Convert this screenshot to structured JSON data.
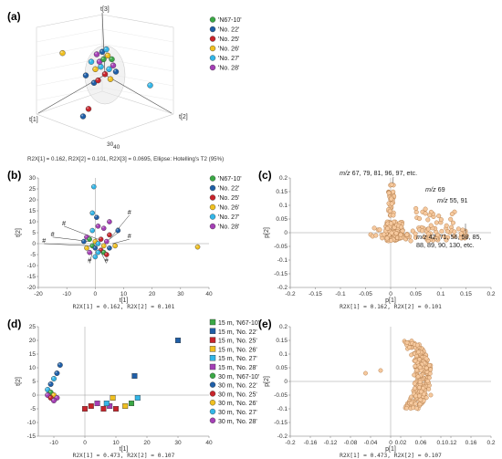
{
  "panels": {
    "a": "(a)",
    "b": "(b)",
    "c": "(c)",
    "d": "(d)",
    "e": "(e)"
  },
  "colors": {
    "N67_10": "#3aa845",
    "No22": "#1f5fa8",
    "No25": "#c8242b",
    "No26": "#f0c020",
    "No27": "#33b6e8",
    "No28": "#a53fb6",
    "loading_fill": "#f6c99e",
    "loading_stroke": "#b07a4a"
  },
  "chart_data": [
    {
      "panel": "a",
      "type": "scatter",
      "axes": [
        "t[1]",
        "t[2]",
        "t[3]"
      ],
      "ticks_bottom": [
        "30",
        "40"
      ],
      "legend": [
        "'N67-10'",
        "'No. 22'",
        "'No. 25'",
        "'No. 26'",
        "'No. 27'",
        "'No. 28'"
      ],
      "caption": "R2X[1] = 0.162, R2X[2] = 0.101, R2X[3] = 0.0695, Ellipse: Hotelling's T2 (95%)",
      "points": [
        {
          "x": 0.19,
          "y": 0.31,
          "g": "No26"
        },
        {
          "x": 0.42,
          "y": 0.55,
          "g": "No22"
        },
        {
          "x": 0.36,
          "y": 0.49,
          "g": "No22"
        },
        {
          "x": 0.5,
          "y": 0.48,
          "g": "No25"
        },
        {
          "x": 0.47,
          "y": 0.42,
          "g": "No27"
        },
        {
          "x": 0.55,
          "y": 0.36,
          "g": "N67_10"
        },
        {
          "x": 0.46,
          "y": 0.38,
          "g": "No28"
        },
        {
          "x": 0.52,
          "y": 0.33,
          "g": "No26"
        },
        {
          "x": 0.44,
          "y": 0.32,
          "g": "No28"
        },
        {
          "x": 0.53,
          "y": 0.44,
          "g": "No27"
        },
        {
          "x": 0.48,
          "y": 0.3,
          "g": "No22"
        },
        {
          "x": 0.56,
          "y": 0.41,
          "g": "No28"
        },
        {
          "x": 0.43,
          "y": 0.44,
          "g": "No26"
        },
        {
          "x": 0.51,
          "y": 0.28,
          "g": "No27"
        },
        {
          "x": 0.58,
          "y": 0.46,
          "g": "No22"
        },
        {
          "x": 0.45,
          "y": 0.53,
          "g": "No25"
        },
        {
          "x": 0.4,
          "y": 0.38,
          "g": "No27"
        },
        {
          "x": 0.54,
          "y": 0.52,
          "g": "No26"
        },
        {
          "x": 0.49,
          "y": 0.36,
          "g": "N67_10"
        },
        {
          "x": 0.38,
          "y": 0.76,
          "g": "No25"
        },
        {
          "x": 0.34,
          "y": 0.82,
          "g": "No22"
        },
        {
          "x": 0.83,
          "y": 0.57,
          "g": "No27"
        }
      ]
    },
    {
      "panel": "b",
      "type": "scatter",
      "xlabel": "t[1]",
      "ylabel": "t[2]",
      "xlim": [
        -20,
        40
      ],
      "ylim": [
        -20,
        30
      ],
      "xticks": [
        -20,
        -10,
        0,
        10,
        20,
        30,
        40
      ],
      "yticks": [
        -20,
        -15,
        -10,
        -5,
        0,
        5,
        10,
        15,
        20,
        25,
        30
      ],
      "legend": [
        "'N67-10'",
        "'No. 22'",
        "'No. 25'",
        "'No. 26'",
        "'No. 27'",
        "'No. 28'"
      ],
      "caption": "R2X[1] = 0.162, R2X[2] = 0.101",
      "annotation_mark": "#",
      "points": [
        {
          "x": -0.5,
          "y": 26,
          "g": "No27"
        },
        {
          "x": 0.5,
          "y": 12,
          "g": "No22"
        },
        {
          "x": -1,
          "y": 14,
          "g": "No27"
        },
        {
          "x": 5,
          "y": 10,
          "g": "No28"
        },
        {
          "x": 1,
          "y": 8,
          "g": "No28"
        },
        {
          "x": 3,
          "y": 7,
          "g": "No28"
        },
        {
          "x": 8,
          "y": 6,
          "g": "No22"
        },
        {
          "x": -1,
          "y": 6,
          "g": "No27"
        },
        {
          "x": 5,
          "y": 4,
          "g": "No25"
        },
        {
          "x": -3,
          "y": 3,
          "g": "No28"
        },
        {
          "x": -2,
          "y": 2,
          "g": "N67_10"
        },
        {
          "x": 0,
          "y": 1,
          "g": "No26"
        },
        {
          "x": 2,
          "y": 2,
          "g": "No25"
        },
        {
          "x": -4,
          "y": 1,
          "g": "No22"
        },
        {
          "x": 1,
          "y": 0,
          "g": "No27"
        },
        {
          "x": 4,
          "y": 1,
          "g": "No28"
        },
        {
          "x": -1,
          "y": -1,
          "g": "N67_10"
        },
        {
          "x": 3,
          "y": -1,
          "g": "No26"
        },
        {
          "x": 0,
          "y": -2,
          "g": "No22"
        },
        {
          "x": 2,
          "y": -3,
          "g": "No25"
        },
        {
          "x": -3,
          "y": -2,
          "g": "No26"
        },
        {
          "x": 1,
          "y": -4,
          "g": "No27"
        },
        {
          "x": 5,
          "y": -2,
          "g": "No22"
        },
        {
          "x": -2,
          "y": -4,
          "g": "No28"
        },
        {
          "x": 3,
          "y": -4,
          "g": "N67_10"
        },
        {
          "x": 7,
          "y": -1,
          "g": "No26"
        },
        {
          "x": 4,
          "y": -5,
          "g": "No25"
        },
        {
          "x": 0,
          "y": -6,
          "g": "No27"
        },
        {
          "x": 36,
          "y": -1.5,
          "g": "No26"
        }
      ],
      "hash_marks": [
        {
          "x": -11,
          "y": 8,
          "tx": 1,
          "ty": 2
        },
        {
          "x": -15,
          "y": 3,
          "tx": -2,
          "ty": 1
        },
        {
          "x": -18,
          "y": 0,
          "tx": -1,
          "ty": -1
        },
        {
          "x": 12,
          "y": 13,
          "tx": 5,
          "ty": 2
        },
        {
          "x": 12,
          "y": 2,
          "tx": 6,
          "ty": 0
        },
        {
          "x": -2,
          "y": -9,
          "tx": -1,
          "ty": -4
        },
        {
          "x": 4,
          "y": -9,
          "tx": 2,
          "ty": -4
        },
        {
          "x": 8,
          "y": 5,
          "tx": 4,
          "ty": 1
        }
      ]
    },
    {
      "panel": "c",
      "type": "scatter",
      "xlabel": "p[1]",
      "ylabel": "p[2]",
      "xlim": [
        -0.2,
        0.2
      ],
      "ylim": [
        -0.2,
        0.2
      ],
      "xticks": [
        "-0.2",
        "-0.15",
        "-0.1",
        "-0.05",
        "0",
        "0.05",
        "0.1",
        "0.15",
        "0.2"
      ],
      "yticks": [
        "-0.2",
        "-0.15",
        "-0.1",
        "-0.05",
        "0",
        "0.05",
        "0.1",
        "0.15",
        "0.2"
      ],
      "caption": "R2X[1] = 0.162, R2X[2] = 0.101",
      "annotations": [
        {
          "mz": "m/z",
          "text": " 67, 79, 81, 96, 97, etc."
        },
        {
          "mz": "m/z",
          "text": " 69"
        },
        {
          "mz": "m/z",
          "text": " 55, 91"
        },
        {
          "mz": "m/z",
          "text": " 42, 71, 56, 58, 85,"
        },
        {
          "mz": "",
          "text": "88, 89, 90, 130, etc."
        }
      ]
    },
    {
      "panel": "d",
      "type": "scatter",
      "xlabel": "t[1]",
      "ylabel": "t[2]",
      "xlim": [
        -15,
        40
      ],
      "ylim": [
        -15,
        25
      ],
      "xticks": [
        -10,
        0,
        10,
        20,
        30,
        40
      ],
      "yticks": [
        -15,
        -10,
        -5,
        0,
        5,
        10,
        15,
        20,
        25
      ],
      "caption": "R2X[1] = 0.473, R2X[2] = 0.107",
      "legend": [
        {
          "label": "15 m, 'N67-10'",
          "g": "N67_10",
          "shape": "square"
        },
        {
          "label": "15 m, 'No. 22'",
          "g": "No22",
          "shape": "square"
        },
        {
          "label": "15 m, 'No. 25'",
          "g": "No25",
          "shape": "square"
        },
        {
          "label": "15 m, 'No. 26'",
          "g": "No26",
          "shape": "square"
        },
        {
          "label": "15 m, 'No. 27'",
          "g": "No27",
          "shape": "square"
        },
        {
          "label": "15 m, 'No. 28'",
          "g": "No28",
          "shape": "square"
        },
        {
          "label": "30 m, 'N67-10'",
          "g": "N67_10",
          "shape": "circle"
        },
        {
          "label": "30 m, 'No. 22'",
          "g": "No22",
          "shape": "circle"
        },
        {
          "label": "30 m, 'No. 25'",
          "g": "No25",
          "shape": "circle"
        },
        {
          "label": "30 m, 'No. 26'",
          "g": "No26",
          "shape": "circle"
        },
        {
          "label": "30 m, 'No. 27'",
          "g": "No27",
          "shape": "circle"
        },
        {
          "label": "30 m, 'No. 28'",
          "g": "No28",
          "shape": "circle"
        }
      ],
      "points": [
        {
          "x": 30,
          "y": 20,
          "g": "No22",
          "s": "square"
        },
        {
          "x": 16,
          "y": 7,
          "g": "No22",
          "s": "square"
        },
        {
          "x": 17,
          "y": -1,
          "g": "No27",
          "s": "square"
        },
        {
          "x": 15,
          "y": -3,
          "g": "N67_10",
          "s": "square"
        },
        {
          "x": 13,
          "y": -4,
          "g": "No26",
          "s": "square"
        },
        {
          "x": 10,
          "y": -5,
          "g": "No25",
          "s": "square"
        },
        {
          "x": 8,
          "y": -4,
          "g": "No28",
          "s": "square"
        },
        {
          "x": 6,
          "y": -5,
          "g": "No25",
          "s": "square"
        },
        {
          "x": 4,
          "y": -3,
          "g": "No28",
          "s": "square"
        },
        {
          "x": 2,
          "y": -4,
          "g": "No25",
          "s": "square"
        },
        {
          "x": 0,
          "y": -5,
          "g": "No25",
          "s": "square"
        },
        {
          "x": 9,
          "y": -1,
          "g": "No26",
          "s": "square"
        },
        {
          "x": 7,
          "y": -3,
          "g": "No27",
          "s": "square"
        },
        {
          "x": -8,
          "y": 11,
          "g": "No22",
          "s": "circle"
        },
        {
          "x": -9,
          "y": 8,
          "g": "No22",
          "s": "circle"
        },
        {
          "x": -10,
          "y": 6,
          "g": "No27",
          "s": "circle"
        },
        {
          "x": -11,
          "y": 4,
          "g": "No22",
          "s": "circle"
        },
        {
          "x": -12,
          "y": 2,
          "g": "No27",
          "s": "circle"
        },
        {
          "x": -11,
          "y": 1,
          "g": "N67_10",
          "s": "circle"
        },
        {
          "x": -12,
          "y": 0,
          "g": "No28",
          "s": "circle"
        },
        {
          "x": -10,
          "y": 0,
          "g": "No26",
          "s": "circle"
        },
        {
          "x": -11,
          "y": -1,
          "g": "No25",
          "s": "circle"
        },
        {
          "x": -9,
          "y": -1,
          "g": "No28",
          "s": "circle"
        },
        {
          "x": -10,
          "y": -2,
          "g": "No28",
          "s": "circle"
        }
      ]
    },
    {
      "panel": "e",
      "type": "scatter",
      "xlabel": "p[1]",
      "ylabel": "p[2]",
      "xlim": [
        -0.2,
        0.2
      ],
      "ylim": [
        -0.2,
        0.2
      ],
      "xticks": [
        "-0.2",
        "-0.16",
        "-0.12",
        "-0.08",
        "-0.04",
        "0",
        "0.02",
        "0.06",
        "0.1",
        "0.12",
        "0.16",
        "0.2"
      ],
      "yticks": [
        "-0.2",
        "-0.15",
        "-0.1",
        "-0.05",
        "0",
        "0.05",
        "0.1",
        "0.15",
        "0.2"
      ],
      "caption": "R2X[1] = 0.473, R2X[2] = 0.107"
    }
  ]
}
